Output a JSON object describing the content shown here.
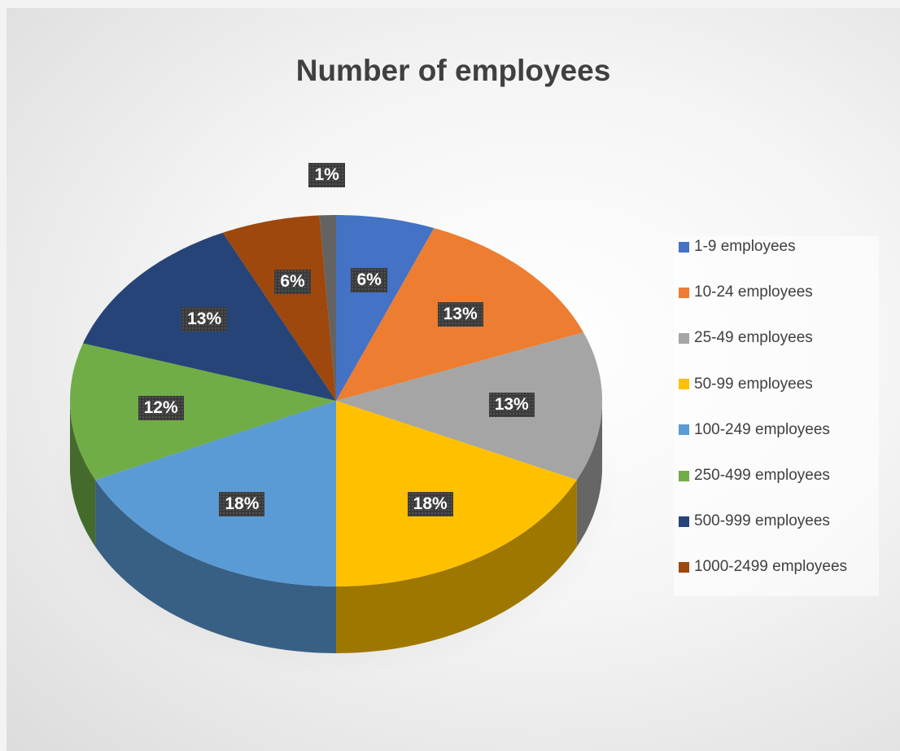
{
  "chart_data": {
    "type": "pie",
    "title": "Number of employees",
    "legend_position": "right",
    "slices": [
      {
        "name": "1-9 employees",
        "value": 6,
        "label": "6%",
        "color": "#4472C4"
      },
      {
        "name": "10-24 employees",
        "value": 13,
        "label": "13%",
        "color": "#ED7D31"
      },
      {
        "name": "25-49 employees",
        "value": 13,
        "label": "13%",
        "color": "#A5A5A5"
      },
      {
        "name": "50-99 employees",
        "value": 18,
        "label": "18%",
        "color": "#FFC000"
      },
      {
        "name": "100-249 employees",
        "value": 18,
        "label": "18%",
        "color": "#5B9BD5"
      },
      {
        "name": "250-499 employees",
        "value": 12,
        "label": "12%",
        "color": "#70AD47"
      },
      {
        "name": "500-999 employees",
        "value": 13,
        "label": "13%",
        "color": "#264478"
      },
      {
        "name": "1000-2499 employees",
        "value": 6,
        "label": "6%",
        "color": "#9E480E"
      },
      {
        "name": "",
        "value": 1,
        "label": "1%",
        "color": "#636363"
      }
    ]
  }
}
